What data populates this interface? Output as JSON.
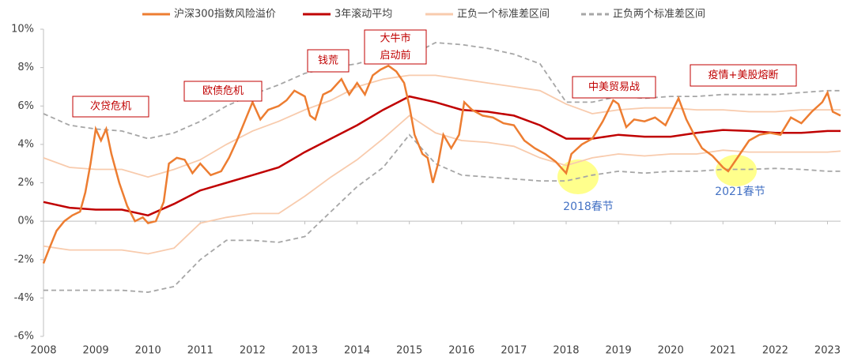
{
  "chart_data": {
    "type": "line",
    "xlim": [
      2008,
      2023.25
    ],
    "xticks": [
      2008,
      2009,
      2010,
      2011,
      2012,
      2013,
      2014,
      2015,
      2016,
      2017,
      2018,
      2019,
      2020,
      2021,
      2022,
      2023
    ],
    "ylim": [
      -6,
      10
    ],
    "yticks": [
      {
        "value": -6,
        "label": "-6%"
      },
      {
        "value": -4,
        "label": "-4%"
      },
      {
        "value": -2,
        "label": "-2%"
      },
      {
        "value": 0,
        "label": "0%"
      },
      {
        "value": 2,
        "label": "2%"
      },
      {
        "value": 4,
        "label": "4%"
      },
      {
        "value": 6,
        "label": "6%"
      },
      {
        "value": 8,
        "label": "8%"
      },
      {
        "value": 10,
        "label": "10%"
      }
    ],
    "series": [
      {
        "name": "沪深300指数风险溢价",
        "color": "#ed7d31",
        "x": [
          2008.0,
          2008.1,
          2008.25,
          2008.4,
          2008.55,
          2008.7,
          2008.8,
          2008.9,
          2009.0,
          2009.1,
          2009.2,
          2009.3,
          2009.45,
          2009.6,
          2009.75,
          2009.9,
          2010.0,
          2010.15,
          2010.3,
          2010.4,
          2010.55,
          2010.7,
          2010.85,
          2011.0,
          2011.2,
          2011.4,
          2011.55,
          2011.7,
          2011.85,
          2012.0,
          2012.15,
          2012.3,
          2012.5,
          2012.65,
          2012.8,
          2013.0,
          2013.1,
          2013.2,
          2013.35,
          2013.5,
          2013.7,
          2013.85,
          2014.0,
          2014.15,
          2014.3,
          2014.45,
          2014.6,
          2014.75,
          2014.9,
          2015.0,
          2015.1,
          2015.25,
          2015.35,
          2015.45,
          2015.55,
          2015.65,
          2015.8,
          2015.95,
          2016.05,
          2016.2,
          2016.4,
          2016.6,
          2016.8,
          2017.0,
          2017.2,
          2017.4,
          2017.6,
          2017.8,
          2018.0,
          2018.1,
          2018.3,
          2018.5,
          2018.7,
          2018.9,
          2019.0,
          2019.15,
          2019.3,
          2019.5,
          2019.7,
          2019.9,
          2020.15,
          2020.3,
          2020.45,
          2020.6,
          2020.8,
          2021.0,
          2021.1,
          2021.3,
          2021.5,
          2021.7,
          2021.9,
          2022.1,
          2022.3,
          2022.5,
          2022.7,
          2022.9,
          2023.0,
          2023.1,
          2023.25
        ],
        "values": [
          -2.2,
          -1.5,
          -0.5,
          0,
          0.3,
          0.5,
          1.5,
          3,
          4.8,
          4.2,
          4.8,
          3.5,
          2,
          0.8,
          0,
          0.2,
          -0.1,
          0,
          1,
          3,
          3.3,
          3.2,
          2.5,
          3.0,
          2.4,
          2.6,
          3.3,
          4.2,
          5.2,
          6.2,
          5.3,
          5.8,
          6.0,
          6.3,
          6.8,
          6.5,
          5.5,
          5.3,
          6.6,
          6.8,
          7.4,
          6.6,
          7.2,
          6.6,
          7.6,
          7.9,
          8.1,
          7.8,
          7.2,
          6.0,
          4.5,
          3.5,
          3.3,
          2.0,
          3.0,
          4.5,
          3.8,
          4.5,
          6.2,
          5.8,
          5.5,
          5.4,
          5.1,
          5.0,
          4.2,
          3.8,
          3.5,
          3.1,
          2.5,
          3.5,
          4.0,
          4.3,
          5.2,
          6.3,
          6.1,
          4.9,
          5.3,
          5.2,
          5.4,
          5.0,
          6.4,
          5.3,
          4.5,
          3.8,
          3.4,
          2.8,
          2.6,
          3.4,
          4.2,
          4.5,
          4.6,
          4.5,
          5.4,
          5.1,
          5.7,
          6.2,
          6.7,
          5.7,
          5.5
        ]
      },
      {
        "name": "3年滚动平均",
        "color": "#c00000",
        "x": [
          2008,
          2008.5,
          2009,
          2009.5,
          2010,
          2010.5,
          2011,
          2011.5,
          2012,
          2012.5,
          2013,
          2013.5,
          2014,
          2014.5,
          2015,
          2015.5,
          2016,
          2016.5,
          2017,
          2017.5,
          2018,
          2018.5,
          2019,
          2019.5,
          2020,
          2020.5,
          2021,
          2021.5,
          2022,
          2022.5,
          2023,
          2023.25
        ],
        "values": [
          1.0,
          0.7,
          0.6,
          0.6,
          0.3,
          0.9,
          1.6,
          2.0,
          2.4,
          2.8,
          3.6,
          4.3,
          5.0,
          5.8,
          6.5,
          6.2,
          5.8,
          5.7,
          5.5,
          5.0,
          4.3,
          4.3,
          4.5,
          4.4,
          4.4,
          4.6,
          4.75,
          4.7,
          4.6,
          4.6,
          4.7,
          4.7
        ]
      },
      {
        "name": "正负一个标准差区间",
        "color": "#f8cbad",
        "x": [
          2008,
          2008.5,
          2009,
          2009.5,
          2010,
          2010.5,
          2011,
          2011.5,
          2012,
          2012.5,
          2013,
          2013.5,
          2014,
          2014.5,
          2015,
          2015.5,
          2016,
          2016.5,
          2017,
          2017.5,
          2018,
          2018.5,
          2019,
          2019.5,
          2020,
          2020.5,
          2021,
          2021.5,
          2022,
          2022.5,
          2023,
          2023.25
        ],
        "values": [
          3.3,
          2.8,
          2.7,
          2.7,
          2.3,
          2.7,
          3.2,
          4.0,
          4.7,
          5.2,
          5.8,
          6.3,
          7.0,
          7.4,
          7.6,
          7.6,
          7.4,
          7.2,
          7.0,
          6.8,
          6.1,
          5.6,
          5.8,
          5.9,
          5.9,
          5.8,
          5.8,
          5.7,
          5.7,
          5.8,
          5.8,
          5.8
        ],
        "lower": [
          -1.3,
          -1.5,
          -1.5,
          -1.5,
          -1.7,
          -1.4,
          -0.1,
          0.2,
          0.4,
          0.4,
          1.3,
          2.3,
          3.2,
          4.3,
          5.5,
          4.6,
          4.2,
          4.1,
          3.9,
          3.3,
          2.9,
          3.3,
          3.5,
          3.4,
          3.5,
          3.5,
          3.7,
          3.6,
          3.6,
          3.6,
          3.6,
          3.65
        ]
      },
      {
        "name": "正负两个标准差区间",
        "color": "#a6a6a6",
        "dashed": true,
        "x": [
          2008,
          2008.5,
          2009,
          2009.5,
          2010,
          2010.5,
          2011,
          2011.5,
          2012,
          2012.5,
          2013,
          2013.5,
          2014,
          2014.5,
          2015,
          2015.5,
          2016,
          2016.5,
          2017,
          2017.5,
          2018,
          2018.5,
          2019,
          2019.5,
          2020,
          2020.5,
          2021,
          2021.5,
          2022,
          2022.5,
          2023,
          2023.25
        ],
        "values": [
          5.6,
          5.0,
          4.8,
          4.7,
          4.3,
          4.6,
          5.2,
          6.0,
          6.6,
          7.1,
          7.7,
          8.0,
          8.2,
          8.6,
          8.6,
          9.3,
          9.2,
          9.0,
          8.7,
          8.2,
          6.2,
          6.2,
          6.5,
          6.4,
          6.5,
          6.5,
          6.6,
          6.6,
          6.6,
          6.7,
          6.8,
          6.8
        ],
        "lower": [
          -3.6,
          -3.6,
          -3.6,
          -3.6,
          -3.7,
          -3.4,
          -2.0,
          -1.0,
          -1.0,
          -1.1,
          -0.8,
          0.5,
          1.8,
          2.8,
          4.5,
          3.0,
          2.4,
          2.3,
          2.2,
          2.1,
          2.1,
          2.4,
          2.6,
          2.5,
          2.6,
          2.6,
          2.7,
          2.7,
          2.75,
          2.7,
          2.6,
          2.6
        ]
      }
    ],
    "annotations": [
      "次贷危机",
      "欧债危机",
      "钱荒",
      "大牛市",
      "启动前",
      "中美贸易战",
      "疫情+美股熔断"
    ],
    "notes": [
      "2018春节",
      "2021春节"
    ]
  }
}
